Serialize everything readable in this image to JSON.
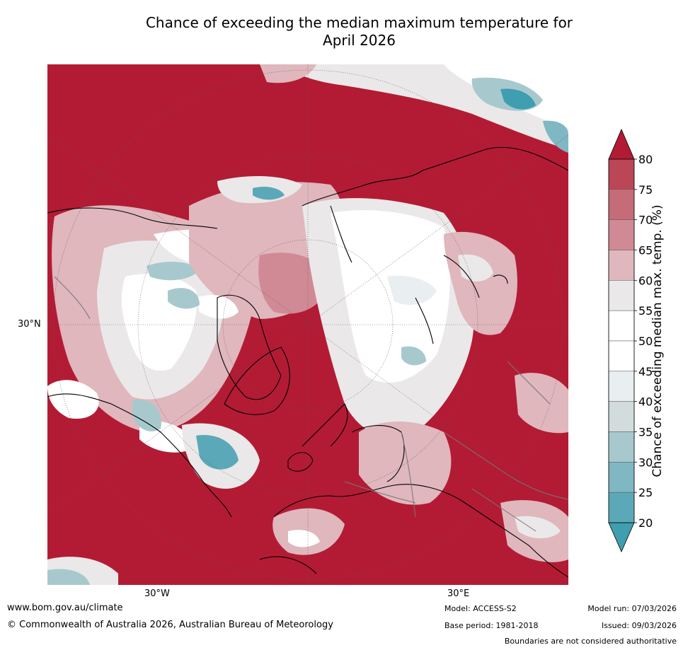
{
  "title_line1": "Chance of exceeding the median maximum temperature for",
  "title_line2": "April 2026",
  "axis_labels": {
    "lat_30n": "30°N",
    "lon_30w": "30°W",
    "lon_30e": "30°E"
  },
  "colorbar": {
    "label": "Chance of exceeding median max. temp. (%)",
    "ticks": [
      "20",
      "25",
      "30",
      "35",
      "40",
      "45",
      "50",
      "55",
      "60",
      "65",
      "70",
      "75",
      "80"
    ],
    "colors": {
      "lt20": "#3f9eb0",
      "20-25": "#5ba9b8",
      "25-30": "#7fb7c3",
      "30-35": "#a7c9ce",
      "35-40": "#d2dcdc",
      "40-45": "#e9eef1",
      "45-50": "#ffffff",
      "50-55": "#ffffff",
      "55-60": "#ebe8e9",
      "60-65": "#dfb7bd",
      "65-70": "#d08a95",
      "70-75": "#c56c78",
      "75-80": "#bb4656",
      "gt80": "#b31b34"
    }
  },
  "footer": {
    "website": "www.bom.gov.au/climate",
    "copyright": "© Commonwealth of Australia 2026, Australian Bureau of Meteorology",
    "model": "Model: ACCESS-S2",
    "base_period": "Base period: 1981-2018",
    "model_run": "Model run: 07/03/2026",
    "issued": "Issued: 09/03/2026",
    "disclaimer": "Boundaries are not considered authoritative"
  }
}
